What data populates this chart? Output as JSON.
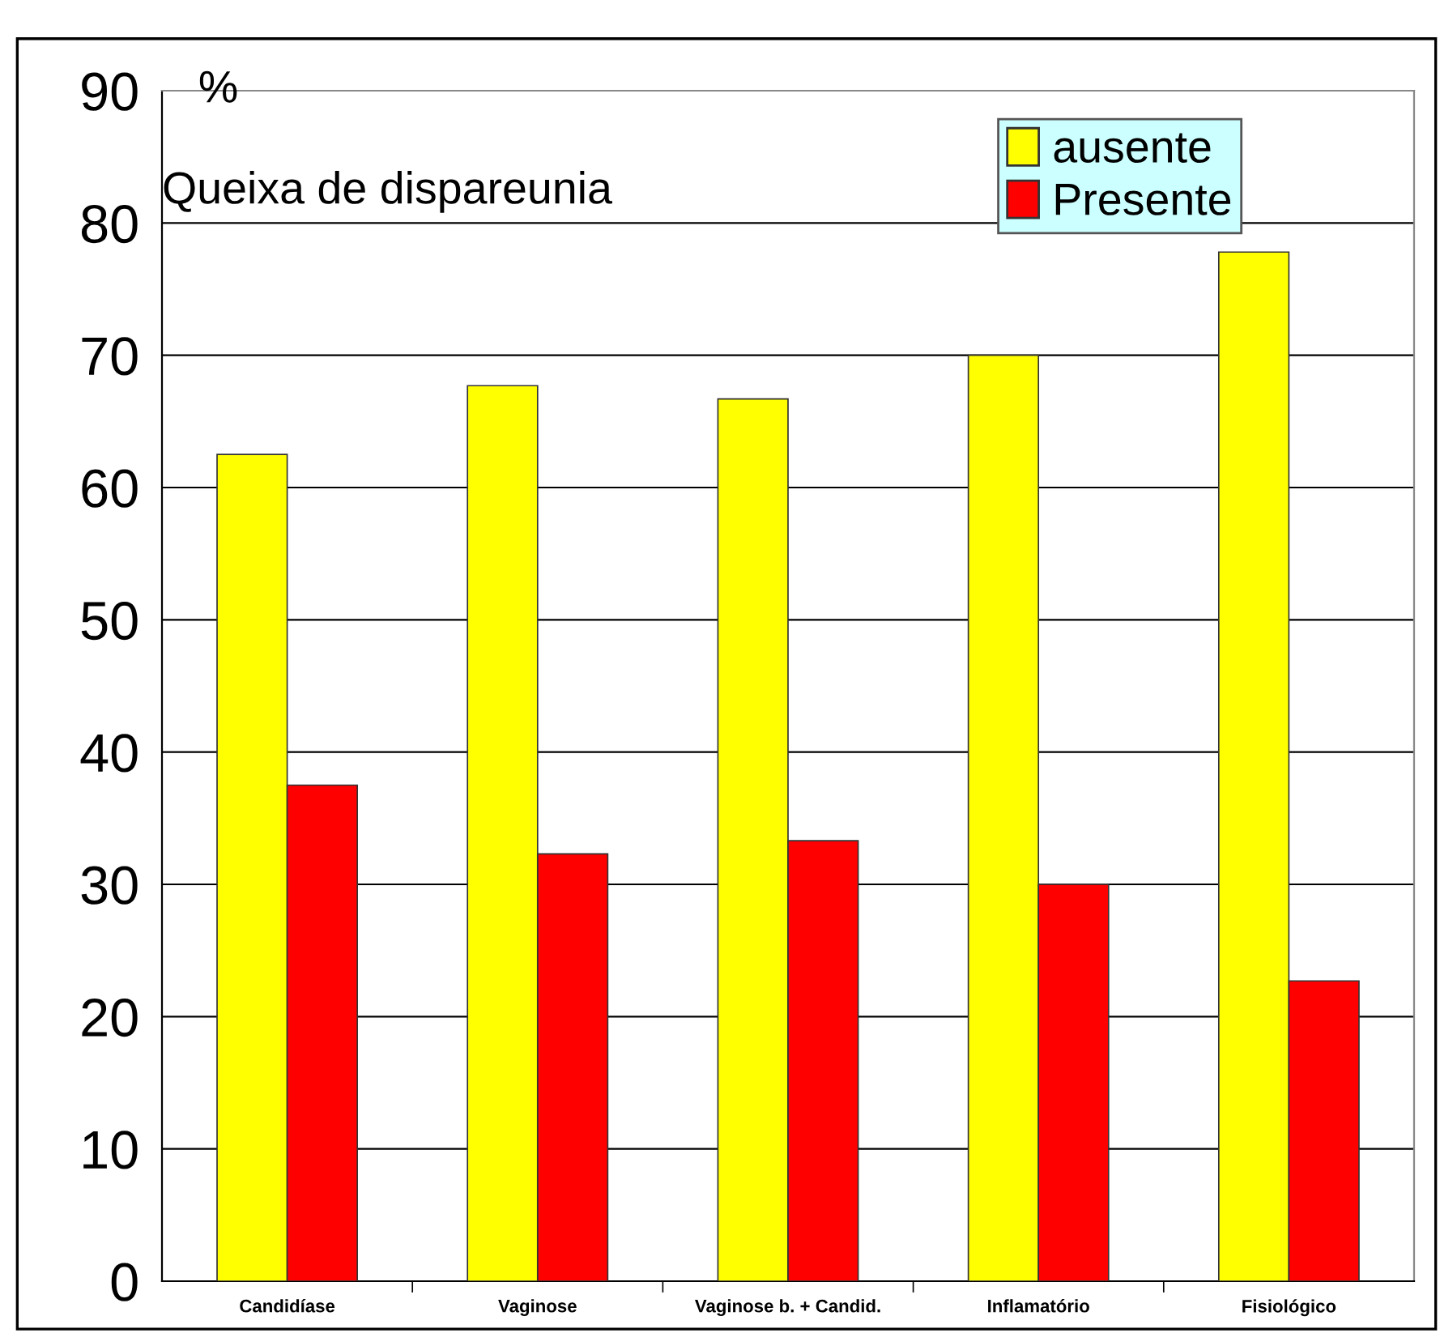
{
  "chart_data": {
    "type": "bar",
    "title": "Queixa de dispareunia",
    "ylabel": "%",
    "categories": [
      "Candidíase",
      "Vaginose",
      "Vaginose b. + Candid.",
      "Inflamatório",
      "Fisiológico"
    ],
    "series": [
      {
        "name": "ausente",
        "color": "#ffff00",
        "values": [
          62.5,
          67.7,
          66.7,
          70.0,
          77.8
        ]
      },
      {
        "name": "Presente",
        "color": "#ff0000",
        "values": [
          37.5,
          32.3,
          33.3,
          30.0,
          22.7
        ]
      }
    ],
    "ylim": [
      0,
      90
    ],
    "yticks": [
      0,
      10,
      20,
      30,
      40,
      50,
      60,
      70,
      80,
      90
    ],
    "grid": "y",
    "legend": "top right"
  }
}
